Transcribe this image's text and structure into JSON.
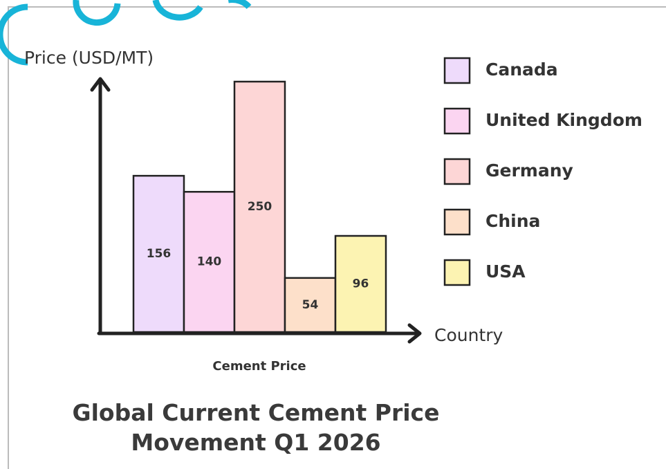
{
  "chart_data": {
    "type": "bar",
    "title": "Global Current Cement Price Movement Q1 2026",
    "x_label": "Country",
    "y_label": "Price (USD/MT)",
    "subtitle": "Cement Price",
    "categories": [
      "Canada",
      "United Kingdom",
      "Germany",
      "China",
      "USA"
    ],
    "values": [
      156,
      140,
      250,
      54,
      96
    ],
    "colors": [
      "#eedbfb",
      "#fbd5f1",
      "#fdd6d6",
      "#fde0ca",
      "#fcf3b2"
    ],
    "legend": "right"
  }
}
